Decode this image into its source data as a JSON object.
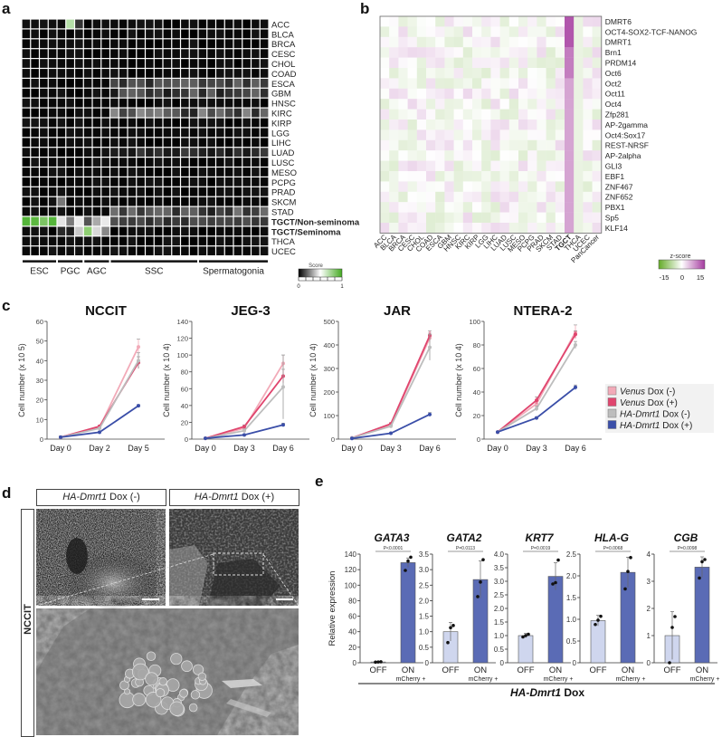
{
  "panel_labels": {
    "a": "a",
    "b": "b",
    "c": "c",
    "d": "d",
    "e": "e"
  },
  "panel_a": {
    "rows": [
      "ACC",
      "BLCA",
      "BRCA",
      "CESC",
      "CHOL",
      "COAD",
      "ESCA",
      "GBM",
      "HNSC",
      "KIRC",
      "KIRP",
      "LGG",
      "LIHC",
      "LUAD",
      "LUSC",
      "MESO",
      "PCPG",
      "PRAD",
      "SKCM",
      "STAD",
      "TGCT/Non-seminoma",
      "TGCT/Seminoma",
      "THCA",
      "UCEC"
    ],
    "bold_rows": [
      "TGCT/Non-seminoma",
      "TGCT/Seminoma"
    ],
    "groups": [
      {
        "label": "ESC",
        "cols": 4
      },
      {
        "label": "PGC",
        "cols": 3
      },
      {
        "label": "AGC",
        "cols": 3
      },
      {
        "label": "SSC",
        "cols": 10
      },
      {
        "label": "Spermatogonia",
        "cols": 8
      }
    ],
    "legend": {
      "title": "Score",
      "min": "0",
      "max": "1"
    }
  },
  "panel_b": {
    "rows": [
      "DMRT6",
      "OCT4-SOX2-TCF-NANOG",
      "DMRT1",
      "Brn1",
      "PRDM14",
      "Oct6",
      "Oct2",
      "Oct11",
      "Oct4",
      "Zfp281",
      "AP-2gamma",
      "Oct4:Sox17",
      "REST-NRSF",
      "AP-2alpha",
      "GLI3",
      "EBF1",
      "ZNF467",
      "ZNF652",
      "PBX1",
      "Sp5",
      "KLF14"
    ],
    "cols": [
      "ACC",
      "BLCA",
      "BRCA",
      "CESC",
      "CHOL",
      "COAD",
      "ESCA",
      "GBM",
      "HNSC",
      "KIRC",
      "KIRP",
      "LGG",
      "LIHC",
      "LUAD",
      "LUSC",
      "MESO",
      "PCPG",
      "PRAD",
      "SKCM",
      "STAD",
      "TGCT",
      "THCA",
      "UCEC",
      "PanCancer"
    ],
    "bold_col": "TGCT",
    "legend": {
      "title": "z-score",
      "ticks": [
        "-15",
        "0",
        "15"
      ]
    }
  },
  "panel_d": {
    "header_left_italic": "HA-Dmrt1",
    "header_left_rest": " Dox (-)",
    "header_right_italic": "HA-Dmrt1",
    "header_right_rest": " Dox (+)",
    "side_label": "NCCIT"
  },
  "panel_e": {
    "ylabel": "Relative expression",
    "x_off": "OFF",
    "x_on": "ON",
    "x_on_sub": "mCherry +",
    "footer_italic": "HA-Dmrt1",
    "footer_rest": " Dox"
  },
  "chart_data": [
    {
      "type": "line",
      "title": "NCCIT",
      "xlabel": "",
      "ylabel": "Cell number (x 10 5)",
      "categories": [
        "Day 0",
        "Day 2",
        "Day 5"
      ],
      "ylim": [
        0,
        60
      ],
      "yticks": [
        0,
        10,
        20,
        30,
        40,
        50,
        60
      ],
      "series": [
        {
          "name": "Venus Dox (-)",
          "color": "#f2aab8",
          "values": [
            1,
            6,
            47
          ],
          "err": [
            0.5,
            0.6,
            4
          ]
        },
        {
          "name": "Venus Dox (+)",
          "color": "#e0456e",
          "values": [
            1,
            6.5,
            39
          ],
          "err": [
            0.5,
            0.6,
            3
          ]
        },
        {
          "name": "HA-Dmrt1 Dox (-)",
          "color": "#bdbdbd",
          "values": [
            1,
            5.5,
            40
          ],
          "err": [
            0.5,
            0.6,
            4
          ]
        },
        {
          "name": "HA-Dmrt1 Dox (+)",
          "color": "#3a4ea8",
          "values": [
            1,
            3.5,
            17
          ],
          "err": [
            0.3,
            0.4,
            0.6
          ]
        }
      ]
    },
    {
      "type": "line",
      "title": "JEG-3",
      "xlabel": "",
      "ylabel": "Cell number (x 10 4)",
      "categories": [
        "Day 0",
        "Day 3",
        "Day 6"
      ],
      "ylim": [
        0,
        140
      ],
      "yticks": [
        0,
        20,
        40,
        60,
        80,
        100,
        120,
        140
      ],
      "series": [
        {
          "name": "Venus Dox (-)",
          "color": "#f2aab8",
          "values": [
            1,
            13,
            90
          ],
          "err": [
            0.5,
            2,
            10
          ]
        },
        {
          "name": "Venus Dox (+)",
          "color": "#e0456e",
          "values": [
            1,
            15,
            75
          ],
          "err": [
            0.5,
            2,
            8
          ]
        },
        {
          "name": "HA-Dmrt1 Dox (-)",
          "color": "#bdbdbd",
          "values": [
            1,
            10,
            62
          ],
          "err": [
            0.5,
            2,
            38
          ]
        },
        {
          "name": "HA-Dmrt1 Dox (+)",
          "color": "#3a4ea8",
          "values": [
            1,
            5,
            17
          ],
          "err": [
            0.3,
            1,
            2
          ]
        }
      ]
    },
    {
      "type": "line",
      "title": "JAR",
      "xlabel": "",
      "ylabel": "Cell number (x 10 4)",
      "categories": [
        "Day 0",
        "Day 3",
        "Day 6"
      ],
      "ylim": [
        0,
        500
      ],
      "yticks": [
        0,
        100,
        200,
        300,
        400,
        500
      ],
      "series": [
        {
          "name": "Venus Dox (-)",
          "color": "#f2aab8",
          "values": [
            5,
            60,
            430
          ],
          "err": [
            2,
            5,
            20
          ]
        },
        {
          "name": "Venus Dox (+)",
          "color": "#e0456e",
          "values": [
            5,
            65,
            440
          ],
          "err": [
            2,
            5,
            20
          ]
        },
        {
          "name": "HA-Dmrt1 Dox (-)",
          "color": "#bdbdbd",
          "values": [
            5,
            55,
            390
          ],
          "err": [
            2,
            5,
            55
          ]
        },
        {
          "name": "HA-Dmrt1 Dox (+)",
          "color": "#3a4ea8",
          "values": [
            3,
            25,
            105
          ],
          "err": [
            1,
            3,
            8
          ]
        }
      ]
    },
    {
      "type": "line",
      "title": "NTERA-2",
      "xlabel": "",
      "ylabel": "Cell number (x 10 4)",
      "categories": [
        "Day 0",
        "Day 3",
        "Day 6"
      ],
      "ylim": [
        0,
        100
      ],
      "yticks": [
        0,
        20,
        40,
        60,
        80,
        100
      ],
      "series": [
        {
          "name": "Venus Dox (-)",
          "color": "#f2aab8",
          "values": [
            6,
            30,
            91
          ],
          "err": [
            0.5,
            3,
            6
          ]
        },
        {
          "name": "Venus Dox (+)",
          "color": "#e0456e",
          "values": [
            6,
            33,
            89
          ],
          "err": [
            0.5,
            3,
            3
          ]
        },
        {
          "name": "HA-Dmrt1 Dox (-)",
          "color": "#bdbdbd",
          "values": [
            6,
            26,
            80
          ],
          "err": [
            0.5,
            2,
            3
          ]
        },
        {
          "name": "HA-Dmrt1 Dox (+)",
          "color": "#3a4ea8",
          "values": [
            6,
            18,
            44
          ],
          "err": [
            0.5,
            1,
            2
          ]
        }
      ],
      "legend": [
        {
          "italic": "Venus",
          "rest": " Dox (-)",
          "color": "#f2aab8"
        },
        {
          "italic": "Venus",
          "rest": " Dox (+)",
          "color": "#e0456e"
        },
        {
          "italic": "HA-Dmrt1",
          "rest": " Dox (-)",
          "color": "#bdbdbd"
        },
        {
          "italic": "HA-Dmrt1",
          "rest": " Dox (+)",
          "color": "#3a4ea8"
        }
      ]
    },
    {
      "type": "bar",
      "title": "GATA3",
      "categories": [
        "OFF",
        "ON"
      ],
      "values": [
        1,
        129
      ],
      "err": [
        0.3,
        6
      ],
      "points": [
        [
          0.8,
          1,
          1.2
        ],
        [
          119,
          131,
          136
        ]
      ],
      "ylim": [
        0,
        140
      ],
      "yticks": [
        "0",
        "20",
        "40",
        "60",
        "80",
        "100",
        "120",
        "140"
      ],
      "pvalue": "P<0.0001",
      "ylabel": "Relative expression"
    },
    {
      "type": "bar",
      "title": "GATA2",
      "categories": [
        "OFF",
        "ON"
      ],
      "values": [
        1,
        2.68
      ],
      "err": [
        0.3,
        0.6
      ],
      "points": [
        [
          0.65,
          1.13,
          1.2
        ],
        [
          2.13,
          2.6,
          3.32
        ]
      ],
      "ylim": [
        0,
        3.5
      ],
      "yticks": [
        "0",
        "0.5",
        "1.0",
        "1.5",
        "2.0",
        "2.5",
        "3.0",
        "3.5"
      ],
      "pvalue": "P=0.0113"
    },
    {
      "type": "bar",
      "title": "KRT7",
      "categories": [
        "OFF",
        "ON"
      ],
      "values": [
        1,
        3.18
      ],
      "err": [
        0.08,
        0.5
      ],
      "points": [
        [
          0.95,
          1.0,
          1.05
        ],
        [
          2.9,
          2.95,
          3.78
        ]
      ],
      "ylim": [
        0,
        4.0
      ],
      "yticks": [
        "0",
        "0.5",
        "1.0",
        "1.5",
        "2.0",
        "2.5",
        "3.0",
        "3.5",
        "4.0"
      ],
      "pvalue": "P=0.0019"
    },
    {
      "type": "bar",
      "title": "HLA-G",
      "categories": [
        "OFF",
        "ON"
      ],
      "values": [
        0.97,
        2.08
      ],
      "err": [
        0.12,
        0.35
      ],
      "points": [
        [
          0.88,
          0.98,
          1.07
        ],
        [
          1.7,
          2.1,
          2.42
        ]
      ],
      "ylim": [
        0,
        2.5
      ],
      "yticks": [
        "0",
        "0.5",
        "1.0",
        "1.5",
        "2.0",
        "2.5"
      ],
      "pvalue": "P=0.0068"
    },
    {
      "type": "bar",
      "title": "CGB",
      "categories": [
        "OFF",
        "ON"
      ],
      "values": [
        1,
        3.52
      ],
      "err": [
        0.88,
        0.38
      ],
      "points": [
        [
          0,
          1.3,
          1.7
        ],
        [
          3.12,
          3.72,
          3.8
        ]
      ],
      "ylim": [
        0,
        4
      ],
      "yticks": [
        "0",
        "1",
        "2",
        "3",
        "4"
      ],
      "pvalue": "P=0.0098"
    }
  ]
}
